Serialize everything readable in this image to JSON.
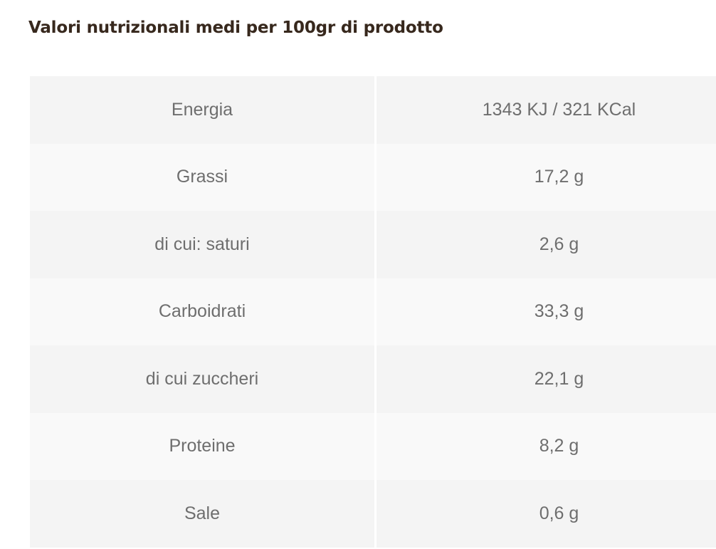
{
  "title": "Valori nutrizionali medi per 100gr di prodotto",
  "rows": [
    {
      "label": "Energia",
      "value": "1343 KJ / 321 KCal"
    },
    {
      "label": "Grassi",
      "value": "17,2 g"
    },
    {
      "label": "di cui: saturi",
      "value": "2,6 g"
    },
    {
      "label": "Carboidrati",
      "value": "33,3 g"
    },
    {
      "label": "di cui zuccheri",
      "value": "22,1 g"
    },
    {
      "label": "Proteine",
      "value": "8,2 g"
    },
    {
      "label": "Sale",
      "value": "0,6 g"
    }
  ]
}
